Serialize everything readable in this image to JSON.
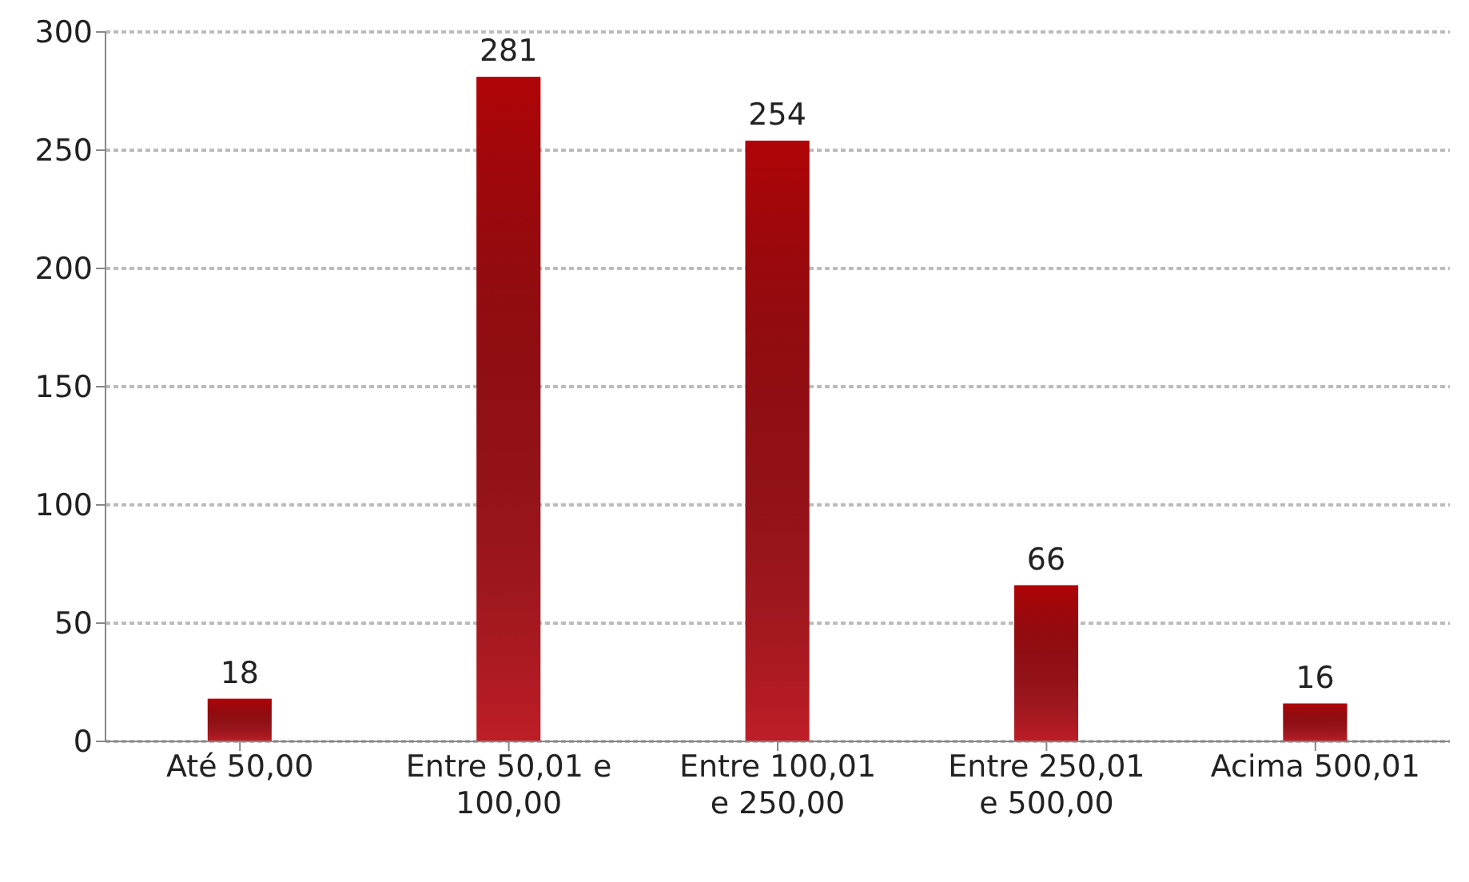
{
  "chart_data": {
    "type": "bar",
    "categories": [
      "Até 50,00",
      "Entre 50,01 e 100,00",
      "Entre 100,01 e 250,00",
      "Entre 250,01 e 500,00",
      "Acima 500,01"
    ],
    "values": [
      18,
      281,
      254,
      66,
      16
    ],
    "color": "#d4202a",
    "ylim": [
      0,
      300
    ],
    "yticks": [
      0,
      50,
      100,
      150,
      200,
      250,
      300
    ],
    "grid": "y",
    "data_labels": true
  }
}
